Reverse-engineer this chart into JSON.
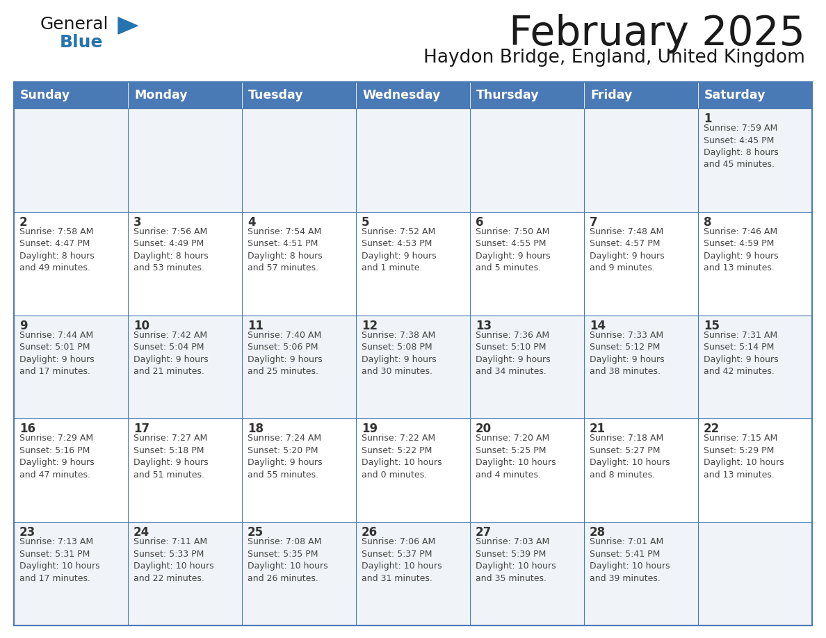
{
  "title": "February 2025",
  "subtitle": "Haydon Bridge, England, United Kingdom",
  "days_of_week": [
    "Sunday",
    "Monday",
    "Tuesday",
    "Wednesday",
    "Thursday",
    "Friday",
    "Saturday"
  ],
  "header_bg": "#4a7ab5",
  "header_text": "#FFFFFF",
  "cell_bg_light": "#f0f4f8",
  "cell_bg_white": "#FFFFFF",
  "cell_border": "#4a7ab5",
  "date_color": "#333333",
  "text_color": "#444444",
  "title_color": "#1a1a1a",
  "subtitle_color": "#1a1a1a",
  "logo_general_color": "#1a1a1a",
  "logo_blue_color": "#2574b0",
  "weeks": [
    [
      {
        "day": null,
        "info": null
      },
      {
        "day": null,
        "info": null
      },
      {
        "day": null,
        "info": null
      },
      {
        "day": null,
        "info": null
      },
      {
        "day": null,
        "info": null
      },
      {
        "day": null,
        "info": null
      },
      {
        "day": 1,
        "info": "Sunrise: 7:59 AM\nSunset: 4:45 PM\nDaylight: 8 hours\nand 45 minutes."
      }
    ],
    [
      {
        "day": 2,
        "info": "Sunrise: 7:58 AM\nSunset: 4:47 PM\nDaylight: 8 hours\nand 49 minutes."
      },
      {
        "day": 3,
        "info": "Sunrise: 7:56 AM\nSunset: 4:49 PM\nDaylight: 8 hours\nand 53 minutes."
      },
      {
        "day": 4,
        "info": "Sunrise: 7:54 AM\nSunset: 4:51 PM\nDaylight: 8 hours\nand 57 minutes."
      },
      {
        "day": 5,
        "info": "Sunrise: 7:52 AM\nSunset: 4:53 PM\nDaylight: 9 hours\nand 1 minute."
      },
      {
        "day": 6,
        "info": "Sunrise: 7:50 AM\nSunset: 4:55 PM\nDaylight: 9 hours\nand 5 minutes."
      },
      {
        "day": 7,
        "info": "Sunrise: 7:48 AM\nSunset: 4:57 PM\nDaylight: 9 hours\nand 9 minutes."
      },
      {
        "day": 8,
        "info": "Sunrise: 7:46 AM\nSunset: 4:59 PM\nDaylight: 9 hours\nand 13 minutes."
      }
    ],
    [
      {
        "day": 9,
        "info": "Sunrise: 7:44 AM\nSunset: 5:01 PM\nDaylight: 9 hours\nand 17 minutes."
      },
      {
        "day": 10,
        "info": "Sunrise: 7:42 AM\nSunset: 5:04 PM\nDaylight: 9 hours\nand 21 minutes."
      },
      {
        "day": 11,
        "info": "Sunrise: 7:40 AM\nSunset: 5:06 PM\nDaylight: 9 hours\nand 25 minutes."
      },
      {
        "day": 12,
        "info": "Sunrise: 7:38 AM\nSunset: 5:08 PM\nDaylight: 9 hours\nand 30 minutes."
      },
      {
        "day": 13,
        "info": "Sunrise: 7:36 AM\nSunset: 5:10 PM\nDaylight: 9 hours\nand 34 minutes."
      },
      {
        "day": 14,
        "info": "Sunrise: 7:33 AM\nSunset: 5:12 PM\nDaylight: 9 hours\nand 38 minutes."
      },
      {
        "day": 15,
        "info": "Sunrise: 7:31 AM\nSunset: 5:14 PM\nDaylight: 9 hours\nand 42 minutes."
      }
    ],
    [
      {
        "day": 16,
        "info": "Sunrise: 7:29 AM\nSunset: 5:16 PM\nDaylight: 9 hours\nand 47 minutes."
      },
      {
        "day": 17,
        "info": "Sunrise: 7:27 AM\nSunset: 5:18 PM\nDaylight: 9 hours\nand 51 minutes."
      },
      {
        "day": 18,
        "info": "Sunrise: 7:24 AM\nSunset: 5:20 PM\nDaylight: 9 hours\nand 55 minutes."
      },
      {
        "day": 19,
        "info": "Sunrise: 7:22 AM\nSunset: 5:22 PM\nDaylight: 10 hours\nand 0 minutes."
      },
      {
        "day": 20,
        "info": "Sunrise: 7:20 AM\nSunset: 5:25 PM\nDaylight: 10 hours\nand 4 minutes."
      },
      {
        "day": 21,
        "info": "Sunrise: 7:18 AM\nSunset: 5:27 PM\nDaylight: 10 hours\nand 8 minutes."
      },
      {
        "day": 22,
        "info": "Sunrise: 7:15 AM\nSunset: 5:29 PM\nDaylight: 10 hours\nand 13 minutes."
      }
    ],
    [
      {
        "day": 23,
        "info": "Sunrise: 7:13 AM\nSunset: 5:31 PM\nDaylight: 10 hours\nand 17 minutes."
      },
      {
        "day": 24,
        "info": "Sunrise: 7:11 AM\nSunset: 5:33 PM\nDaylight: 10 hours\nand 22 minutes."
      },
      {
        "day": 25,
        "info": "Sunrise: 7:08 AM\nSunset: 5:35 PM\nDaylight: 10 hours\nand 26 minutes."
      },
      {
        "day": 26,
        "info": "Sunrise: 7:06 AM\nSunset: 5:37 PM\nDaylight: 10 hours\nand 31 minutes."
      },
      {
        "day": 27,
        "info": "Sunrise: 7:03 AM\nSunset: 5:39 PM\nDaylight: 10 hours\nand 35 minutes."
      },
      {
        "day": 28,
        "info": "Sunrise: 7:01 AM\nSunset: 5:41 PM\nDaylight: 10 hours\nand 39 minutes."
      },
      {
        "day": null,
        "info": null
      }
    ]
  ]
}
